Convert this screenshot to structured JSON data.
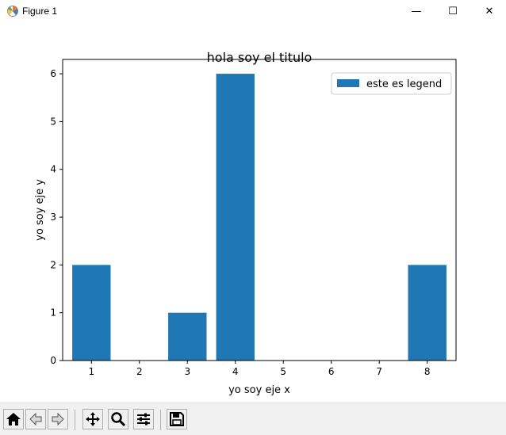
{
  "window": {
    "title": "Figure 1",
    "minimize_glyph": "—",
    "maximize_glyph": "☐",
    "close_glyph": "✕",
    "icon": "matplotlib-logo-icon"
  },
  "chart_data": {
    "type": "bar",
    "title": "hola soy el titulo",
    "xlabel": "yo soy eje x",
    "ylabel": "yo soy eje y",
    "categories": [
      1,
      2,
      3,
      4,
      5,
      6,
      7,
      8
    ],
    "x": [
      1,
      3,
      4,
      8
    ],
    "values": [
      2,
      1,
      6,
      2
    ],
    "xticks": [
      1,
      2,
      3,
      4,
      5,
      6,
      7,
      8
    ],
    "yticks": [
      0,
      1,
      2,
      3,
      4,
      5,
      6
    ],
    "xlim": [
      0.4,
      8.6
    ],
    "ylim": [
      0,
      6.3
    ],
    "bar_width": 0.8,
    "bar_color": "#1f77b4",
    "legend": {
      "entries": [
        "este es legend"
      ],
      "placement": "top-right"
    },
    "grid": false
  },
  "toolbar": {
    "buttons": [
      {
        "name": "home-button",
        "icon": "home-icon"
      },
      {
        "name": "back-button",
        "icon": "back-arrow-icon"
      },
      {
        "name": "forward-button",
        "icon": "forward-arrow-icon"
      },
      {
        "name": "pan-button",
        "icon": "pan-move-icon"
      },
      {
        "name": "zoom-button",
        "icon": "zoom-magnifier-icon"
      },
      {
        "name": "configure-subplots-button",
        "icon": "sliders-icon"
      },
      {
        "name": "save-button",
        "icon": "floppy-disk-icon"
      }
    ]
  }
}
